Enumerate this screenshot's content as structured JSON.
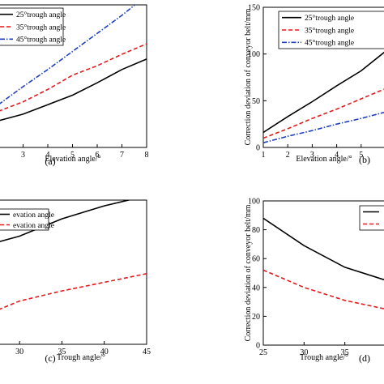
{
  "chart_data": [
    {
      "type": "line",
      "panel_label": "(a)",
      "xlabel": "Elevation angle/°",
      "ylabel": "",
      "xlim": [
        2,
        8
      ],
      "ylim": [
        0,
        150
      ],
      "x": [
        2,
        3,
        4,
        5,
        6,
        7,
        8
      ],
      "xticks": [
        3,
        4,
        5,
        6,
        7,
        8
      ],
      "yticks": [],
      "legend_loc": "top-left",
      "grid": false,
      "series": [
        {
          "name": "25°trough angle",
          "color": "#000000",
          "dash": "solid",
          "values": [
            28,
            35,
            45,
            55,
            68,
            82,
            93
          ]
        },
        {
          "name": "35°trough angle",
          "color": "#e31a1c",
          "dash": "dashed",
          "values": [
            38,
            48,
            61,
            76,
            86,
            98,
            109
          ]
        },
        {
          "name": "45°trough angle",
          "color": "#1f3fbf",
          "dash": "dashdot",
          "values": [
            45,
            64,
            82,
            101,
            120,
            139,
            160
          ]
        }
      ]
    },
    {
      "type": "line",
      "panel_label": "(b)",
      "xlabel": "Elevation angle/°",
      "ylabel": "Correction deviation of conveyor belt/mm",
      "xlim": [
        1,
        6
      ],
      "ylim": [
        0,
        150
      ],
      "x": [
        1,
        2,
        3,
        4,
        5,
        6
      ],
      "xticks": [
        1,
        2,
        3,
        4,
        5
      ],
      "yticks": [
        0,
        50,
        100,
        150
      ],
      "legend_loc": "top-right",
      "grid": false,
      "series": [
        {
          "name": "25°trough angle",
          "color": "#000000",
          "dash": "solid",
          "values": [
            16,
            33,
            49,
            66,
            82,
            103
          ]
        },
        {
          "name": "35°trough angle",
          "color": "#e31a1c",
          "dash": "dashed",
          "values": [
            10,
            20,
            31,
            41,
            52,
            63
          ]
        },
        {
          "name": "45°trough angle",
          "color": "#1f3fbf",
          "dash": "dashdot",
          "values": [
            5,
            12,
            18,
            25,
            31,
            38
          ]
        }
      ]
    },
    {
      "type": "line",
      "panel_label": "(c)",
      "xlabel": "Trough angle/°",
      "ylabel": "",
      "xlim": [
        27.5,
        45
      ],
      "ylim": [
        0,
        100
      ],
      "x": [
        27.5,
        30,
        35,
        40,
        45
      ],
      "xticks": [
        30,
        35,
        40,
        45
      ],
      "yticks": [],
      "legend_loc": "top-left",
      "grid": false,
      "series": [
        {
          "name": "evation angle",
          "color": "#000000",
          "dash": "solid",
          "values": [
            71,
            75,
            87,
            96,
            103
          ]
        },
        {
          "name": "evation angle",
          "color": "#e31a1c",
          "dash": "dashed",
          "values": [
            24,
            30,
            37,
            43,
            49
          ]
        }
      ]
    },
    {
      "type": "line",
      "panel_label": "(d)",
      "xlabel": "Trough angle/°",
      "ylabel": "Correction deviation of conveyor belt/mm",
      "xlim": [
        25,
        40
      ],
      "ylim": [
        0,
        100
      ],
      "x": [
        25,
        30,
        35,
        40
      ],
      "xticks": [
        25,
        30,
        35
      ],
      "yticks": [
        0,
        20,
        40,
        60,
        80,
        100
      ],
      "legend_loc": "top-right",
      "grid": false,
      "series": [
        {
          "name": "",
          "color": "#000000",
          "dash": "solid",
          "values": [
            88,
            69,
            54,
            45
          ]
        },
        {
          "name": "",
          "color": "#e31a1c",
          "dash": "dashed",
          "values": [
            52,
            40,
            31,
            25
          ]
        }
      ]
    }
  ]
}
